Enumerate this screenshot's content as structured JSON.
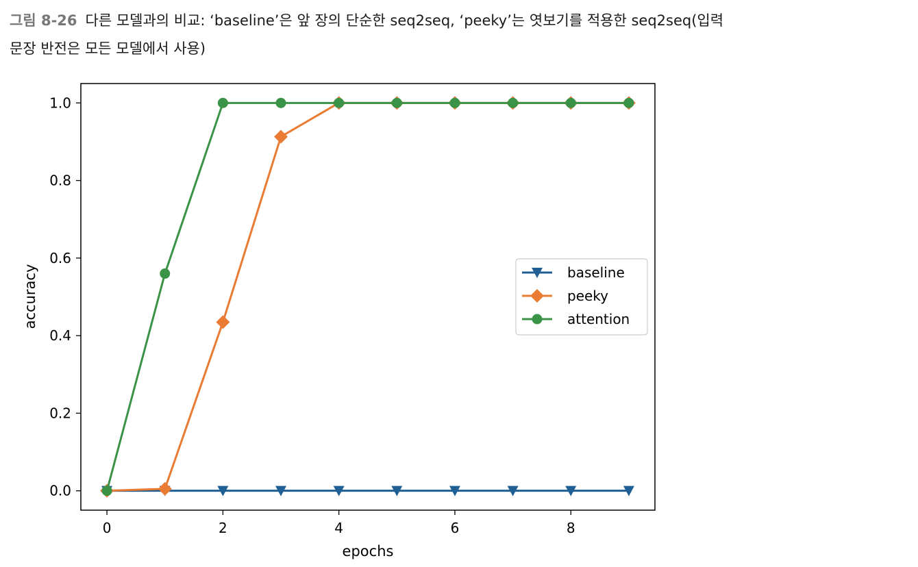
{
  "caption": {
    "label": "그림 8-26",
    "line1": "다른 모델과의 비교: ‘baseline’은 앞 장의 단순한 seq2seq, ‘peeky’는 엿보기를 적용한 seq2seq(입력",
    "line2": "문장 반전은 모든 모델에서 사용)"
  },
  "chart_data": {
    "type": "line",
    "xlabel": "epochs",
    "ylabel": "accuracy",
    "xlim": [
      -0.45,
      9.45
    ],
    "ylim": [
      -0.05,
      1.05
    ],
    "xticks": [
      0,
      2,
      4,
      6,
      8
    ],
    "yticks": [
      0.0,
      0.2,
      0.4,
      0.6,
      0.8,
      1.0
    ],
    "x": [
      0,
      1,
      2,
      3,
      4,
      5,
      6,
      7,
      8,
      9
    ],
    "grid": false,
    "legend_position": "center-right",
    "series": [
      {
        "name": "baseline",
        "color": "#1f5f94",
        "marker": "triangle-down",
        "values": [
          0,
          0,
          0,
          0,
          0,
          0,
          0,
          0,
          0,
          0
        ]
      },
      {
        "name": "peeky",
        "color": "#ea7b33",
        "marker": "diamond",
        "values": [
          0,
          0.005,
          0.435,
          0.913,
          1.0,
          1.0,
          1.0,
          1.0,
          1.0,
          1.0
        ]
      },
      {
        "name": "attention",
        "color": "#3a9346",
        "marker": "circle",
        "values": [
          0,
          0.56,
          1.0,
          1.0,
          1.0,
          1.0,
          1.0,
          1.0,
          1.0,
          1.0
        ]
      }
    ]
  }
}
